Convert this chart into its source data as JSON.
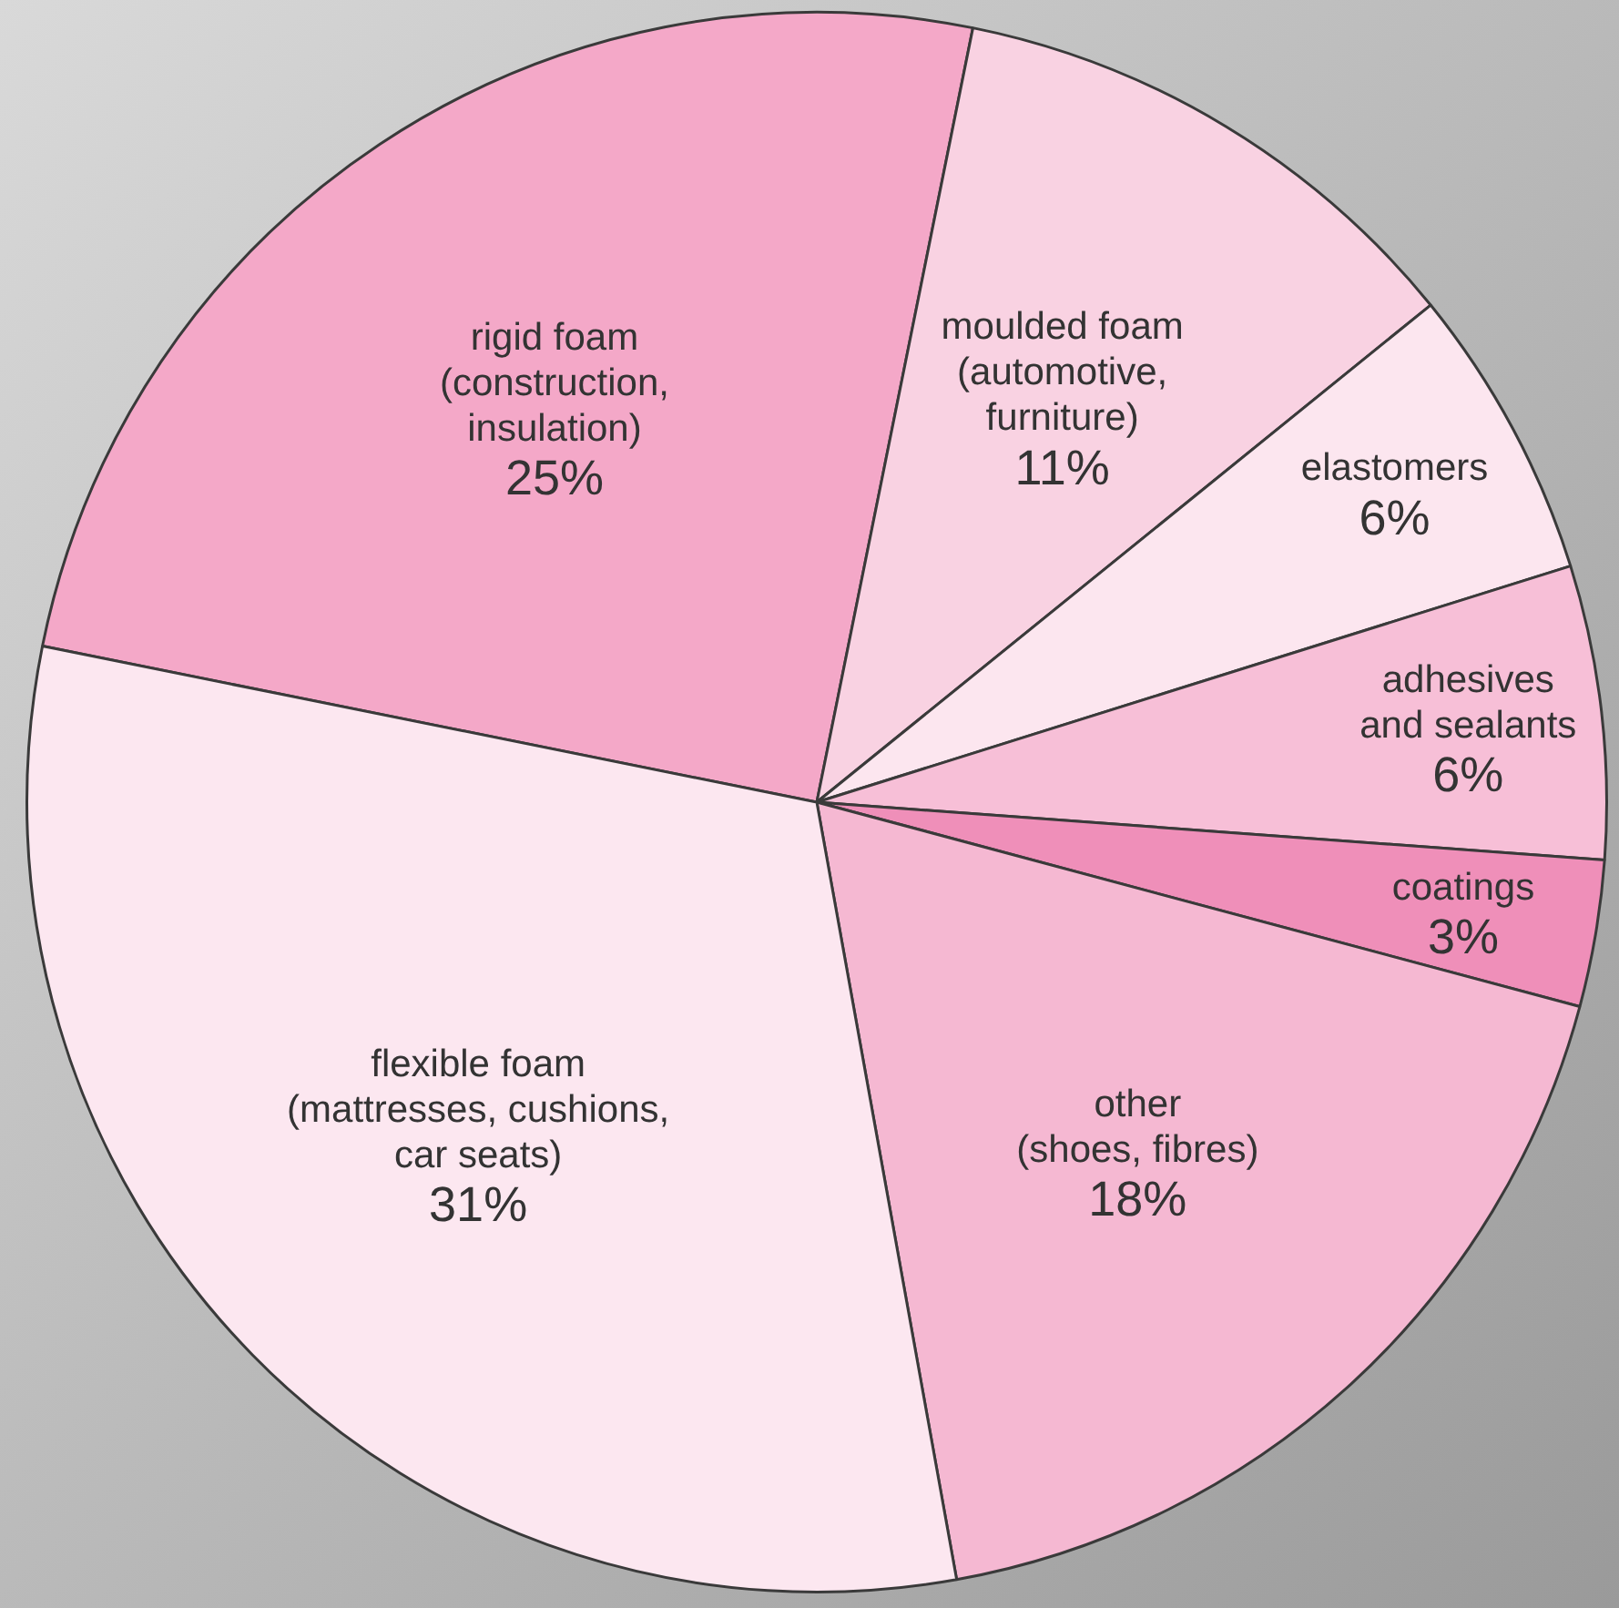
{
  "chart_data": {
    "type": "pie",
    "categories": [
      "rigid foam\n(construction,\ninsulation)",
      "moulded foam\n(automotive,\nfurniture)",
      "elastomers",
      "adhesives\nand sealants",
      "coatings",
      "other\n(shoes, fibres)",
      "flexible foam\n(mattresses, cushions,\ncar seats)"
    ],
    "values": [
      25,
      11,
      6,
      6,
      3,
      18,
      31
    ],
    "value_labels": [
      "25%",
      "11%",
      "6%",
      "6%",
      "3%",
      "18%",
      "31%"
    ],
    "colors": [
      "#f4a8c8",
      "#f9d2e2",
      "#fce6ef",
      "#f7bfd7",
      "#ef8fb9",
      "#f5b8d2",
      "#fce7f0"
    ],
    "legend": false
  }
}
